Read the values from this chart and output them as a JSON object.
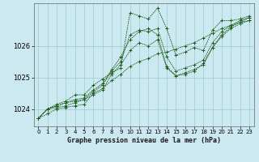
{
  "title": "Graphe pression niveau de la mer (hPa)",
  "background_color": "#cce8f0",
  "grid_color": "#99cccc",
  "line_color": "#1a5c1a",
  "x_ticks": [
    0,
    1,
    2,
    3,
    4,
    5,
    6,
    7,
    8,
    9,
    10,
    11,
    12,
    13,
    14,
    15,
    16,
    17,
    18,
    19,
    20,
    21,
    22,
    23
  ],
  "y_ticks": [
    1024,
    1025,
    1026
  ],
  "ylim": [
    1023.45,
    1027.35
  ],
  "xlim": [
    -0.5,
    23.5
  ],
  "series": [
    [
      1023.7,
      1023.85,
      1024.0,
      1024.05,
      1024.1,
      1024.15,
      1024.5,
      1024.65,
      1024.9,
      1025.1,
      1025.35,
      1025.5,
      1025.6,
      1025.75,
      1025.8,
      1025.9,
      1026.0,
      1026.1,
      1026.25,
      1026.4,
      1026.55,
      1026.65,
      1026.75,
      1026.8
    ],
    [
      1023.7,
      1024.0,
      1024.05,
      1024.1,
      1024.2,
      1024.3,
      1024.45,
      1024.6,
      1025.1,
      1025.4,
      1025.85,
      1026.1,
      1026.0,
      1026.2,
      1025.3,
      1025.05,
      1025.1,
      1025.2,
      1025.45,
      1025.95,
      1026.3,
      1026.55,
      1026.7,
      1026.8
    ],
    [
      1023.7,
      1024.0,
      1024.1,
      1024.2,
      1024.3,
      1024.35,
      1024.6,
      1024.8,
      1025.25,
      1025.65,
      1026.2,
      1026.45,
      1026.55,
      1026.35,
      1025.35,
      1025.05,
      1025.15,
      1025.25,
      1025.4,
      1025.95,
      1026.35,
      1026.6,
      1026.75,
      1026.9
    ],
    [
      1023.7,
      1024.0,
      1024.1,
      1024.2,
      1024.25,
      1024.3,
      1024.55,
      1024.75,
      1025.2,
      1025.5,
      1026.35,
      1026.5,
      1026.45,
      1026.55,
      1025.65,
      1025.2,
      1025.3,
      1025.4,
      1025.55,
      1026.1,
      1026.45,
      1026.65,
      1026.8,
      1026.9
    ],
    [
      1023.7,
      1024.0,
      1024.15,
      1024.25,
      1024.45,
      1024.45,
      1024.75,
      1024.95,
      1025.15,
      1025.3,
      1027.05,
      1026.95,
      1026.85,
      1027.2,
      1026.55,
      1025.7,
      1025.8,
      1025.95,
      1025.85,
      1026.5,
      1026.8,
      1026.8,
      1026.85,
      1026.95
    ]
  ]
}
